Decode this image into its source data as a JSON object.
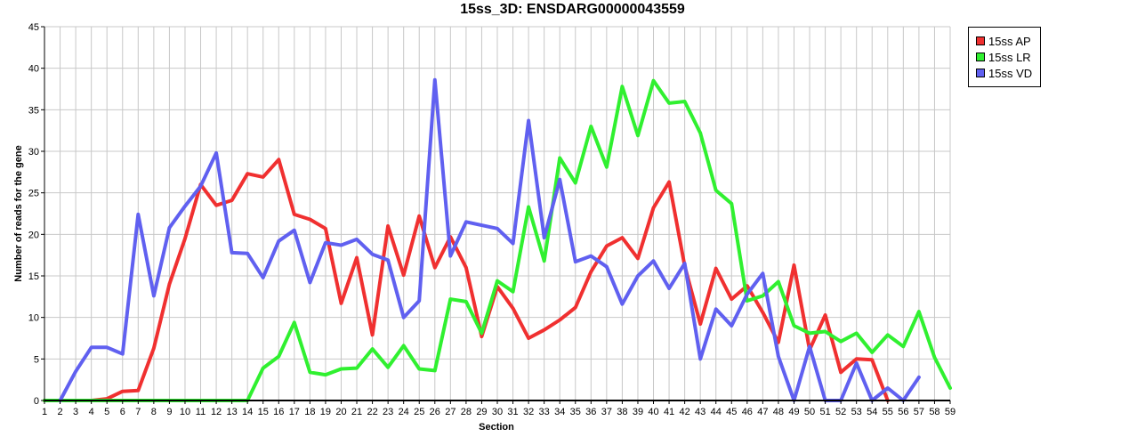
{
  "chart_data": {
    "type": "line",
    "title": "15ss_3D: ENSDARG00000043559",
    "xlabel": "Section",
    "ylabel": "Number of reads for the gene",
    "xlim": [
      1,
      59
    ],
    "ylim": [
      0,
      45
    ],
    "yticks": [
      0,
      5,
      10,
      15,
      20,
      25,
      30,
      35,
      40,
      45
    ],
    "grid": true,
    "legend_position": "top-right",
    "categories": [
      1,
      2,
      3,
      4,
      5,
      6,
      7,
      8,
      9,
      10,
      11,
      12,
      13,
      14,
      15,
      16,
      17,
      18,
      19,
      20,
      21,
      22,
      23,
      24,
      25,
      26,
      27,
      28,
      29,
      30,
      31,
      32,
      33,
      34,
      35,
      36,
      37,
      38,
      39,
      40,
      41,
      42,
      43,
      44,
      45,
      46,
      47,
      48,
      49,
      50,
      51,
      52,
      53,
      54,
      55,
      56,
      57,
      58,
      59
    ],
    "series": [
      {
        "name": "15ss AP",
        "color": "#f03030",
        "values": [
          0,
          0,
          0,
          0,
          0.2,
          1.1,
          1.2,
          6.3,
          14,
          19.5,
          26,
          23.5,
          24.1,
          27.3,
          26.9,
          29,
          22.4,
          21.8,
          20.7,
          11.7,
          17.2,
          7.9,
          21,
          15.1,
          22.2,
          16,
          19.7,
          16,
          7.7,
          13.7,
          11.1,
          7.5,
          8.5,
          9.7,
          11.2,
          15.5,
          18.6,
          19.6,
          17.1,
          23.2,
          26.3,
          16.2,
          9.2,
          15.9,
          12.2,
          13.8,
          10.6,
          7,
          16.3,
          6.1,
          10.3,
          3.4,
          5,
          4.9,
          0,
          null,
          null,
          null,
          null
        ]
      },
      {
        "name": "15ss LR",
        "color": "#30f030",
        "values": [
          0,
          0,
          0,
          0,
          0,
          0,
          0,
          0,
          0,
          0,
          0,
          0,
          0,
          0,
          3.9,
          5.3,
          9.4,
          3.4,
          3.1,
          3.8,
          3.9,
          6.2,
          4,
          6.6,
          3.8,
          3.6,
          12.2,
          11.9,
          8.1,
          14.4,
          13.1,
          23.3,
          16.8,
          29.2,
          26.2,
          33,
          28.1,
          37.8,
          31.9,
          38.5,
          35.8,
          36,
          32.2,
          25.3,
          23.7,
          12,
          12.6,
          14.3,
          9,
          8.1,
          8.3,
          7.1,
          8.1,
          5.8,
          7.9,
          6.5,
          10.7,
          5.2,
          1.5
        ]
      },
      {
        "name": "15ss VD",
        "color": "#6060f0",
        "values": [
          null,
          0,
          3.5,
          6.4,
          6.4,
          5.6,
          22.4,
          12.6,
          20.8,
          23.4,
          25.8,
          29.8,
          17.8,
          17.7,
          14.8,
          19.2,
          20.5,
          14.2,
          19,
          18.7,
          19.4,
          17.6,
          16.9,
          10,
          12,
          38.6,
          17.4,
          21.5,
          21.1,
          20.7,
          18.9,
          33.7,
          19.6,
          26.6,
          16.7,
          17.4,
          16.1,
          11.6,
          15,
          16.8,
          13.5,
          16.5,
          5,
          11,
          9,
          12.8,
          15.3,
          5.3,
          0,
          6.5,
          0,
          0,
          4.5,
          0,
          1.5,
          0,
          2.8,
          null,
          null
        ]
      }
    ]
  }
}
